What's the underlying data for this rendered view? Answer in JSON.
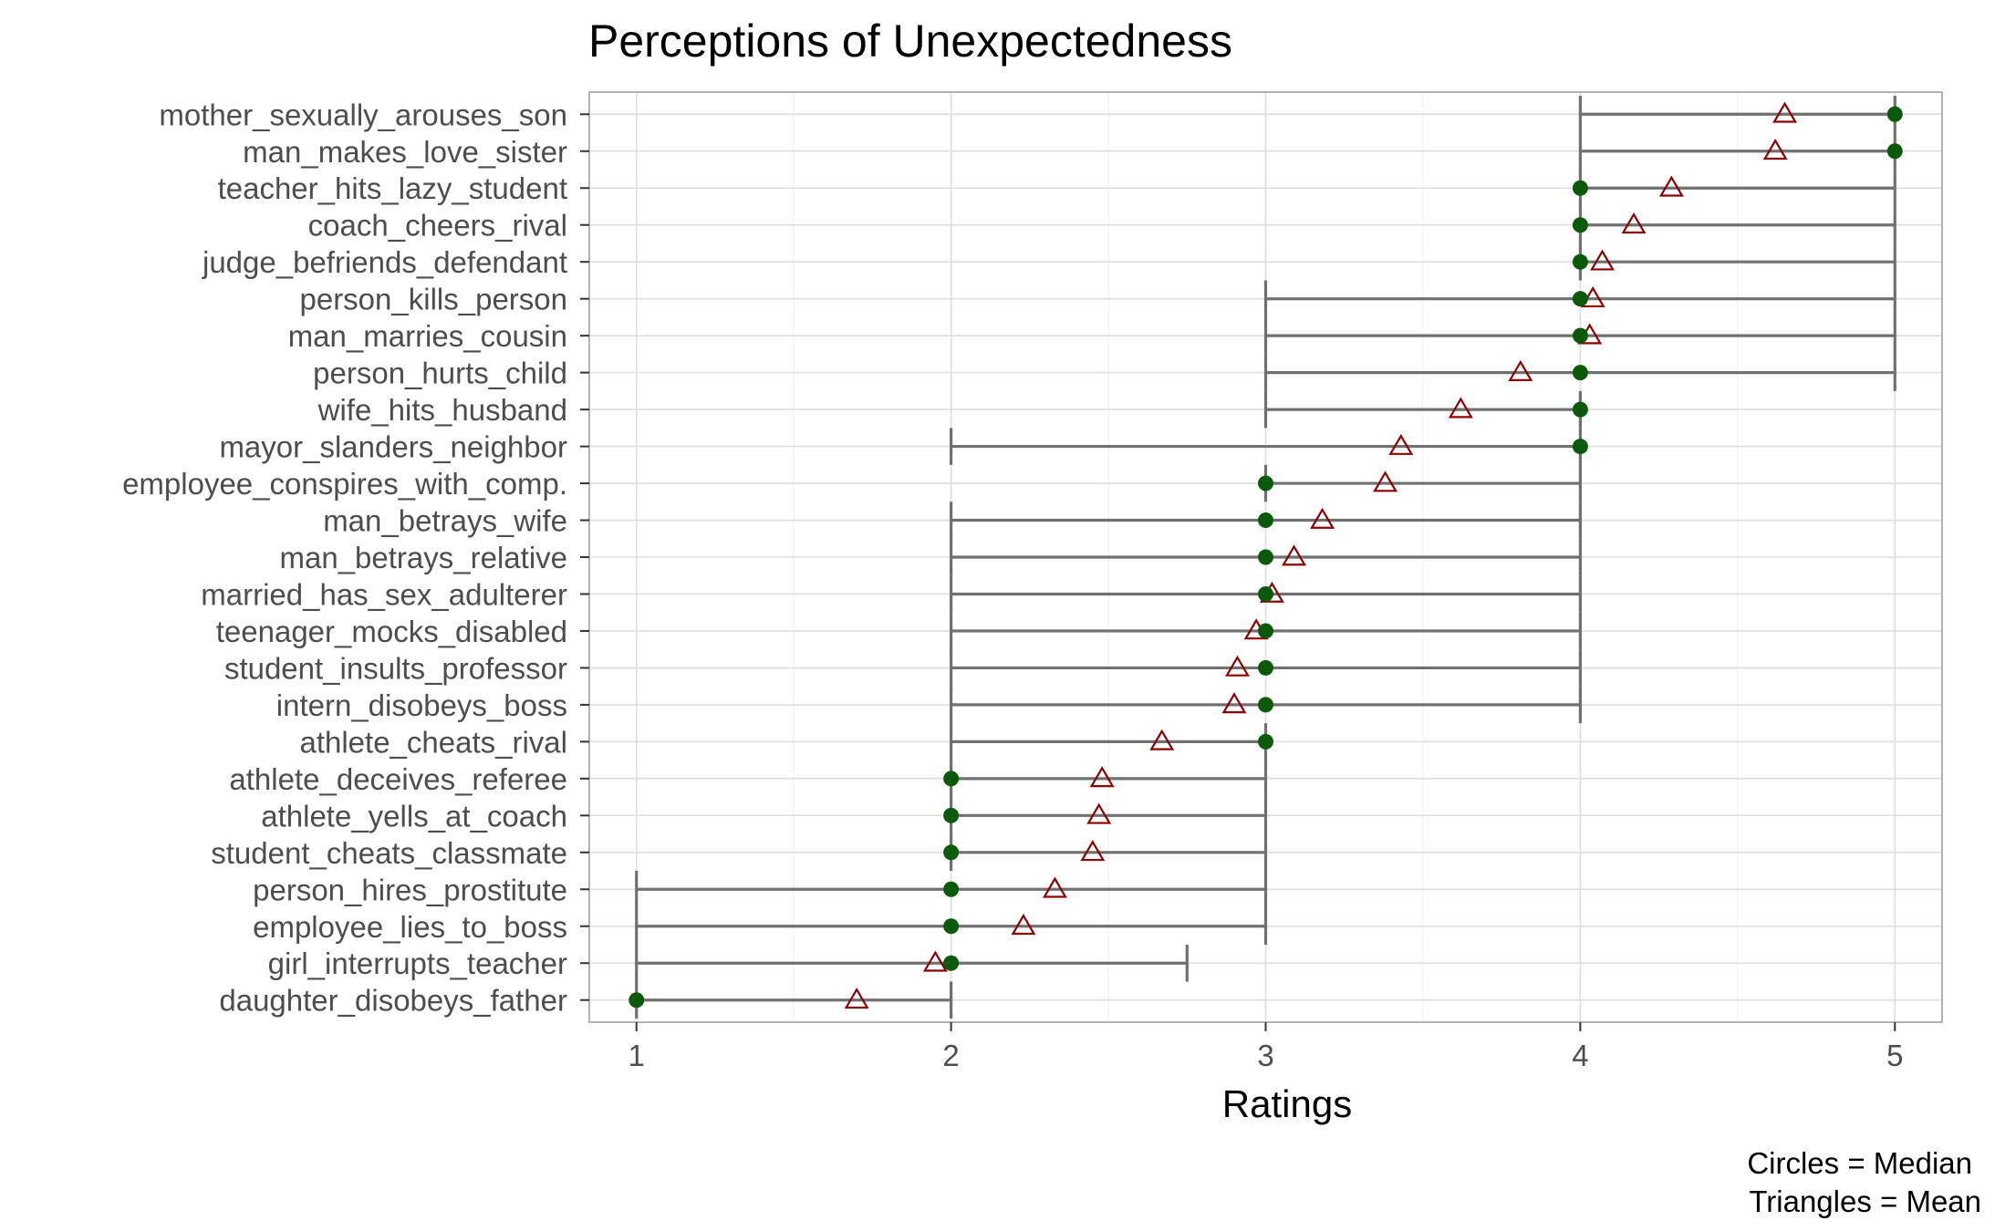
{
  "chart_data": {
    "type": "scatter",
    "title": "Perceptions of Unexpectedness",
    "xlabel": "Ratings",
    "ylabel": "",
    "xlim": [
      0.85,
      5.15
    ],
    "x_ticks": [
      "1",
      "2",
      "3",
      "4",
      "5"
    ],
    "caption": [
      "Circles = Median",
      "Triangles = Mean"
    ],
    "grid": true,
    "categories": [
      "mother_sexually_arouses_son",
      "man_makes_love_sister",
      "teacher_hits_lazy_student",
      "coach_cheers_rival",
      "judge_befriends_defendant",
      "person_kills_person",
      "man_marries_cousin",
      "person_hurts_child",
      "wife_hits_husband",
      "mayor_slanders_neighbor",
      "employee_conspires_with_comp.",
      "man_betrays_wife",
      "man_betrays_relative",
      "married_has_sex_adulterer",
      "teenager_mocks_disabled",
      "student_insults_professor",
      "intern_disobeys_boss",
      "athlete_cheats_rival",
      "athlete_deceives_referee",
      "athlete_yells_at_coach",
      "student_cheats_classmate",
      "person_hires_prostitute",
      "employee_lies_to_boss",
      "girl_interrupts_teacher",
      "daughter_disobeys_father"
    ],
    "series": [
      {
        "name": "Median",
        "marker": "circle",
        "color": "#0b5a0b",
        "values": [
          5,
          5,
          4,
          4,
          4,
          4,
          4,
          4,
          4,
          4,
          3,
          3,
          3,
          3,
          3,
          3,
          3,
          3,
          2,
          2,
          2,
          2,
          2,
          2,
          1
        ]
      },
      {
        "name": "Mean",
        "marker": "triangle",
        "color": "#8b0000",
        "values": [
          4.65,
          4.62,
          4.29,
          4.17,
          4.07,
          4.04,
          4.03,
          3.81,
          3.62,
          3.43,
          3.38,
          3.18,
          3.09,
          3.02,
          2.97,
          2.91,
          2.9,
          2.67,
          2.48,
          2.47,
          2.45,
          2.33,
          2.23,
          1.95,
          1.7
        ]
      },
      {
        "name": "Range low",
        "values": [
          4,
          4,
          4,
          4,
          4,
          3,
          3,
          3,
          3,
          2,
          3,
          2,
          2,
          2,
          2,
          2,
          2,
          2,
          2,
          2,
          2,
          1,
          1,
          1,
          1
        ]
      },
      {
        "name": "Range high",
        "values": [
          5,
          5,
          5,
          5,
          5,
          5,
          5,
          5,
          4,
          4,
          4,
          4,
          4,
          4,
          4,
          4,
          4,
          3,
          3,
          3,
          3,
          3,
          3,
          2.75,
          2
        ]
      }
    ]
  },
  "colors": {
    "median": "#0b5a0b",
    "mean": "#8b0000",
    "range": "#707070"
  }
}
